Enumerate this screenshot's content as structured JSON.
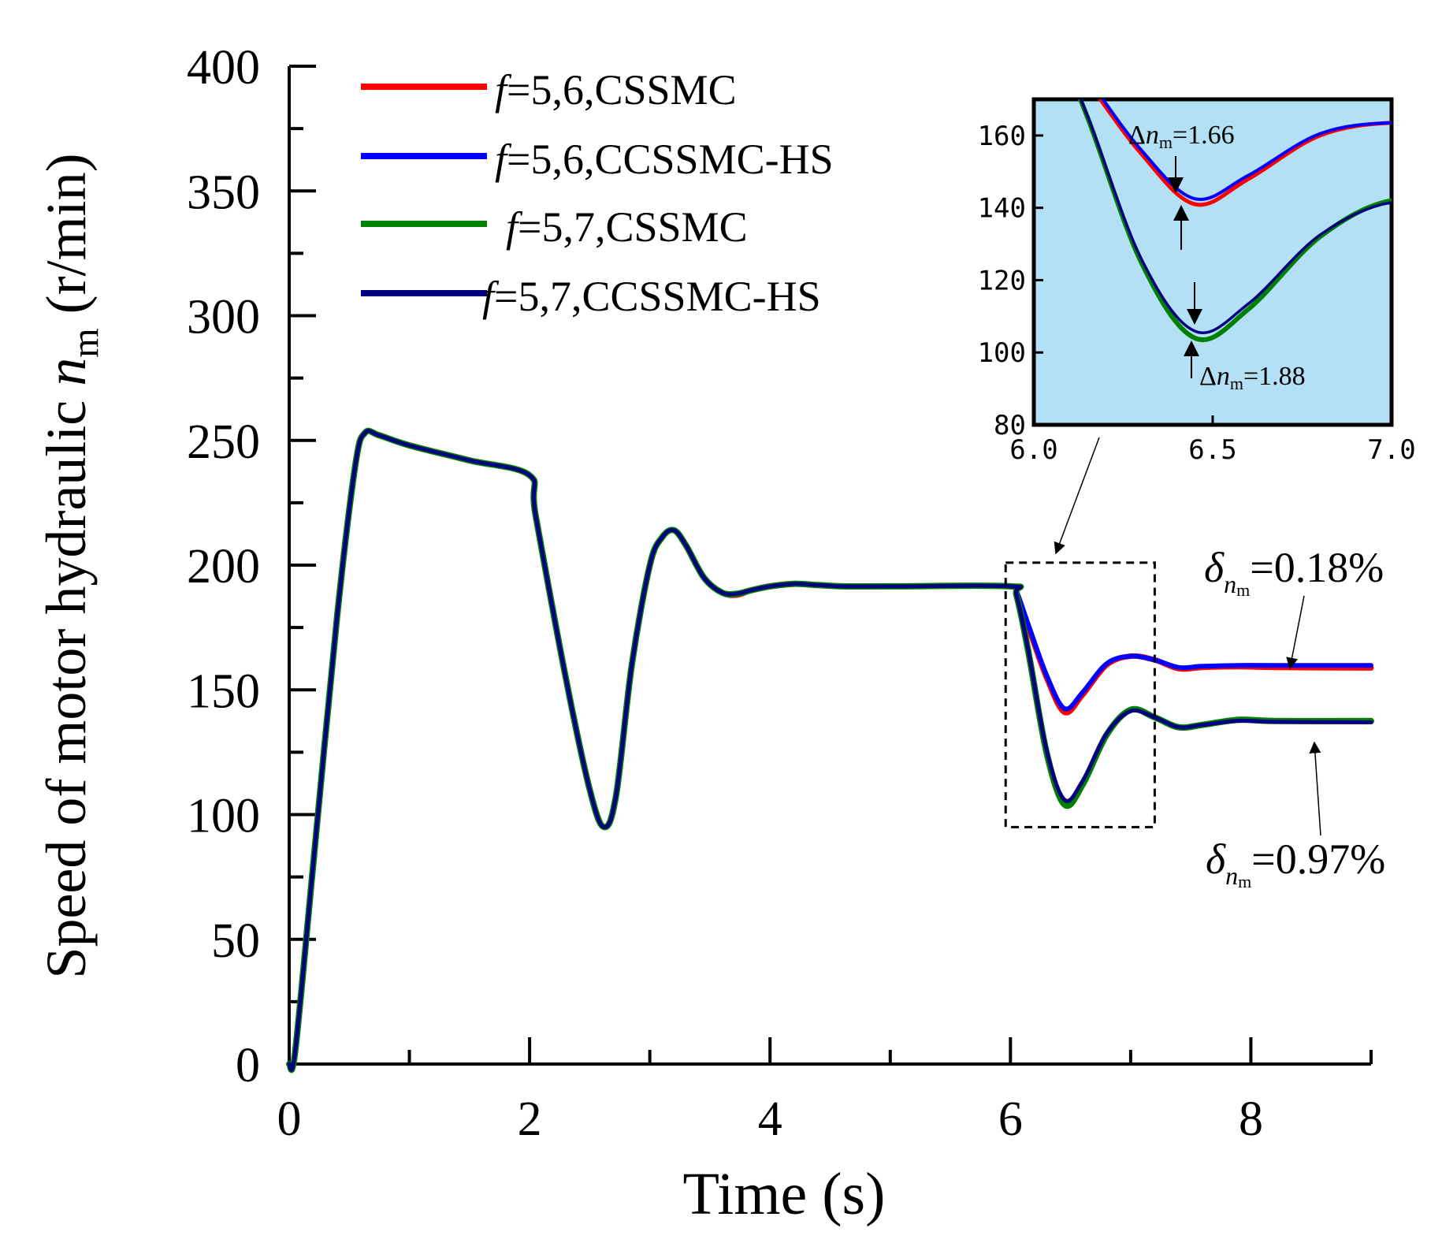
{
  "chart_data": {
    "type": "line",
    "title": "",
    "xlabel": "Time (s)",
    "ylabel": "Speed of  motor hydraulic n_m (r/min)",
    "ylabel_text": "Speed of  motor hydraulic ",
    "ylabel_var": "n",
    "ylabel_sub": "m",
    "ylabel_unit": " (r/min)",
    "xlim": [
      0,
      9
    ],
    "ylim": [
      0,
      400
    ],
    "xticks": [
      0,
      2,
      4,
      6,
      8
    ],
    "xticklabels": [
      "0",
      "2",
      "4",
      "6",
      "8"
    ],
    "yticks": [
      0,
      50,
      100,
      150,
      200,
      250,
      300,
      350,
      400
    ],
    "yticklabels": [
      "0",
      "50",
      "100",
      "150",
      "200",
      "250",
      "300",
      "350",
      "400"
    ],
    "legend": {
      "placement": "top-left",
      "entries": [
        {
          "var": "f",
          "text": "=5,6,CSSMC",
          "color": "#ff0000"
        },
        {
          "var": "f",
          "text": "=5,6,CCSSMC-HS",
          "color": "#0000ff"
        },
        {
          "var": "f",
          "text": "=5,7,CSSMC",
          "color": "#008000"
        },
        {
          "var": "f",
          "text": "=5,7,CCSSMC-HS",
          "color": "#000080"
        }
      ]
    },
    "series": [
      {
        "name": "f=5,6,CSSMC",
        "color": "#ff0000",
        "x": [
          0,
          0.05,
          0.2,
          0.4,
          0.55,
          0.63,
          0.75,
          1.0,
          1.5,
          2.0,
          2.05,
          2.3,
          2.5,
          2.62,
          2.72,
          2.85,
          3.0,
          3.1,
          3.2,
          3.3,
          3.45,
          3.6,
          3.72,
          3.85,
          4.0,
          4.2,
          4.4,
          4.6,
          5.0,
          6.0,
          6.05,
          6.15,
          6.3,
          6.45,
          6.6,
          6.8,
          7.0,
          7.2,
          7.4,
          7.6,
          7.9,
          8.2,
          9.0
        ],
        "y": [
          0,
          5,
          80,
          180,
          240,
          253,
          252,
          248,
          242,
          236,
          220,
          155,
          110,
          95,
          108,
          160,
          200,
          211,
          214,
          208,
          195,
          189,
          188,
          190,
          191.5,
          192.5,
          192,
          191.5,
          191.5,
          191.5,
          189,
          175,
          155,
          141,
          148,
          160,
          163.5,
          162,
          158.5,
          159,
          159.3,
          159,
          158.8
        ]
      },
      {
        "name": "f=5,6,CCSSMC-HS",
        "color": "#0000ff",
        "x": [
          0,
          0.05,
          0.2,
          0.4,
          0.55,
          0.63,
          0.75,
          1.0,
          1.5,
          2.0,
          2.05,
          2.3,
          2.5,
          2.62,
          2.72,
          2.85,
          3.0,
          3.1,
          3.2,
          3.3,
          3.45,
          3.6,
          3.72,
          3.85,
          4.0,
          4.2,
          4.4,
          4.6,
          5.0,
          6.0,
          6.05,
          6.15,
          6.3,
          6.45,
          6.6,
          6.8,
          7.0,
          7.2,
          7.4,
          7.6,
          7.9,
          8.2,
          9.0
        ],
        "y": [
          0,
          5,
          80,
          180,
          240,
          253,
          252,
          248,
          242,
          236,
          220,
          155,
          110,
          95,
          108,
          160,
          200,
          211,
          214,
          208,
          195,
          189,
          188.5,
          190,
          191.5,
          192.5,
          192,
          191.5,
          191.5,
          191.5,
          189.5,
          176,
          156,
          142.5,
          149,
          160.5,
          163.5,
          162,
          159,
          159.5,
          159.8,
          159.8,
          159.8
        ]
      },
      {
        "name": "f=5,7,CSSMC",
        "color": "#008000",
        "x": [
          0,
          0.05,
          0.2,
          0.4,
          0.55,
          0.63,
          0.75,
          1.0,
          1.5,
          2.0,
          2.05,
          2.3,
          2.5,
          2.62,
          2.72,
          2.85,
          3.0,
          3.1,
          3.2,
          3.3,
          3.45,
          3.6,
          3.72,
          3.85,
          4.0,
          4.2,
          4.4,
          4.6,
          5.0,
          6.0,
          6.05,
          6.15,
          6.3,
          6.45,
          6.6,
          6.8,
          7.0,
          7.2,
          7.4,
          7.6,
          7.9,
          8.2,
          9.0
        ],
        "y": [
          0,
          5,
          80,
          180,
          240,
          253,
          252,
          248,
          242,
          236,
          220,
          155,
          110,
          95,
          108,
          160,
          200,
          211,
          214,
          208,
          195,
          189,
          188.5,
          190,
          191.5,
          192.5,
          192,
          191.5,
          191.5,
          191.5,
          188,
          165,
          125,
          104,
          112,
          132,
          142,
          139,
          135,
          136,
          138,
          137.5,
          137.5
        ]
      },
      {
        "name": "f=5,7,CCSSMC-HS",
        "color": "#000080",
        "x": [
          0,
          0.05,
          0.2,
          0.4,
          0.55,
          0.63,
          0.75,
          1.0,
          1.5,
          2.0,
          2.05,
          2.3,
          2.5,
          2.62,
          2.72,
          2.85,
          3.0,
          3.1,
          3.2,
          3.3,
          3.45,
          3.6,
          3.72,
          3.85,
          4.0,
          4.2,
          4.4,
          4.6,
          5.0,
          6.0,
          6.05,
          6.15,
          6.3,
          6.45,
          6.6,
          6.8,
          7.0,
          7.2,
          7.4,
          7.6,
          7.9,
          8.2,
          9.0
        ],
        "y": [
          0,
          5,
          80,
          180,
          240,
          253,
          252,
          248,
          242,
          236,
          220,
          155,
          110,
          95,
          108,
          160,
          200,
          211,
          214,
          208,
          195,
          189,
          188.5,
          190,
          191.5,
          192.5,
          192,
          191.5,
          191.5,
          191.5,
          188,
          165.5,
          126,
          105.9,
          113.5,
          132.5,
          141.5,
          139,
          135,
          136,
          137.6,
          137.2,
          137
        ]
      }
    ],
    "inset": {
      "xlim": [
        6.0,
        7.0
      ],
      "ylim": [
        80,
        170
      ],
      "xticks": [
        6.0,
        6.5,
        7.0
      ],
      "xticklabels": [
        "6.0",
        "6.5",
        "7.0"
      ],
      "yticks": [
        80,
        100,
        120,
        140,
        160
      ],
      "yticklabels": [
        "80",
        "100",
        "120",
        "140",
        "160"
      ],
      "background": "#b3e0f5",
      "annotations": [
        {
          "prefix": "Δ",
          "var": "n",
          "sub": "m",
          "value": "=1.66"
        },
        {
          "prefix": "Δ",
          "var": "n",
          "sub": "m",
          "value": "=1.88"
        }
      ]
    },
    "zoom_box": {
      "xlim": [
        5.96,
        7.2
      ],
      "ylim": [
        95,
        201
      ]
    },
    "annotations": [
      {
        "symbol": "δ",
        "var": "n",
        "sub": "m",
        "value": "=0.18%",
        "target_x": 8.3,
        "target_y": 159.5
      },
      {
        "symbol": "δ",
        "var": "n",
        "sub": "m",
        "value": "=0.97%",
        "target_x": 8.6,
        "target_y": 137
      }
    ]
  }
}
